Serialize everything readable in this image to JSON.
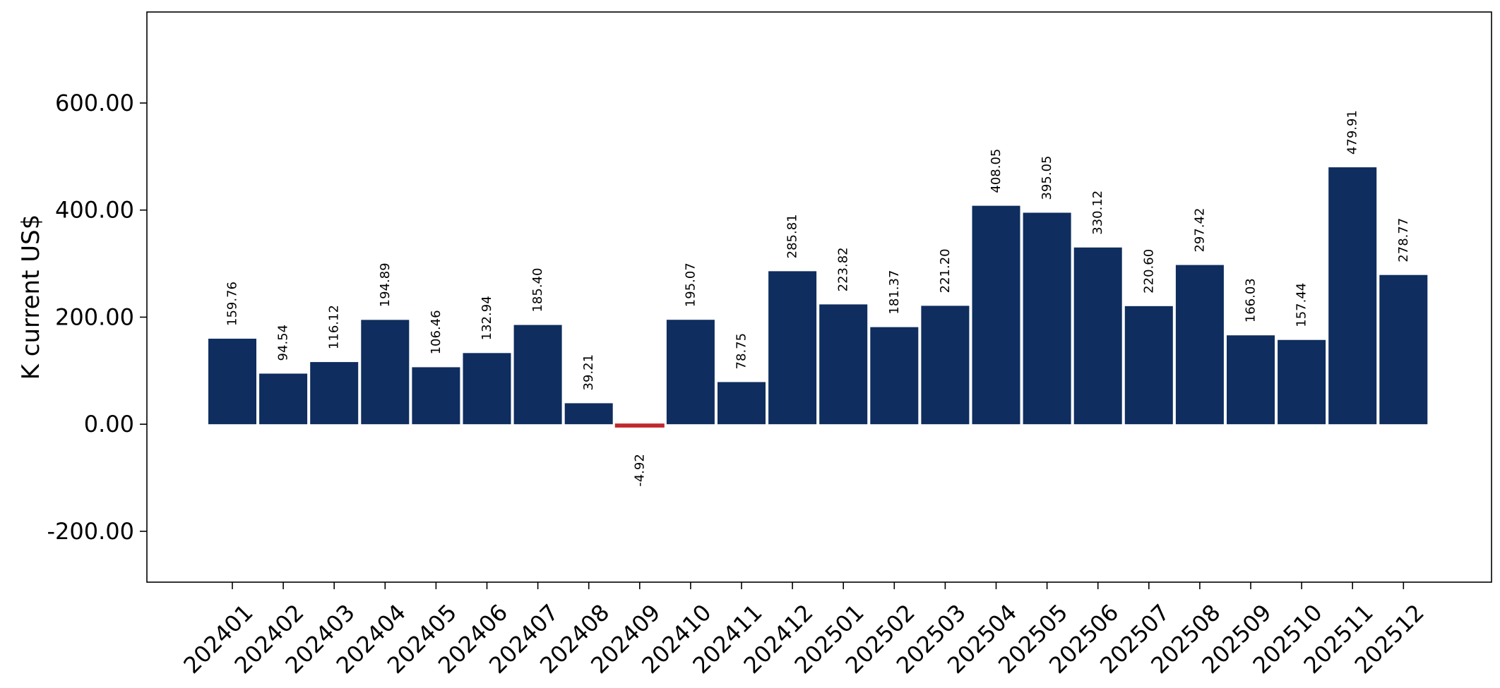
{
  "chart_data": {
    "type": "bar",
    "ylabel": "K current US$",
    "xlabel": "",
    "title": "",
    "ylim": [
      -295,
      770
    ],
    "yticks": [
      -200,
      0,
      200,
      400,
      600
    ],
    "ytick_labels": [
      "-200.00",
      "0.00",
      "200.00",
      "400.00",
      "600.00"
    ],
    "categories": [
      "202401",
      "202402",
      "202403",
      "202404",
      "202405",
      "202406",
      "202407",
      "202408",
      "202409",
      "202410",
      "202411",
      "202412",
      "202501",
      "202502",
      "202503",
      "202504",
      "202505",
      "202506",
      "202507",
      "202508",
      "202509",
      "202510",
      "202511",
      "202512"
    ],
    "values": [
      159.76,
      94.54,
      116.12,
      194.89,
      106.46,
      132.94,
      185.4,
      39.21,
      -4.92,
      195.07,
      78.75,
      285.81,
      223.82,
      181.37,
      221.2,
      408.05,
      395.05,
      330.12,
      220.6,
      297.42,
      166.03,
      157.44,
      479.91,
      278.77
    ],
    "value_labels": [
      "159.76",
      "94.54",
      "116.12",
      "194.89",
      "106.46",
      "132.94",
      "185.40",
      "39.21",
      "-4.92",
      "195.07",
      "78.75",
      "285.81",
      "223.82",
      "181.37",
      "221.20",
      "408.05",
      "395.05",
      "330.12",
      "220.60",
      "297.42",
      "166.03",
      "157.44",
      "479.91",
      "278.77"
    ],
    "colors": {
      "positive": "#0f2d5e",
      "negative": "#c0282d"
    },
    "grid": false,
    "legend": "none"
  }
}
